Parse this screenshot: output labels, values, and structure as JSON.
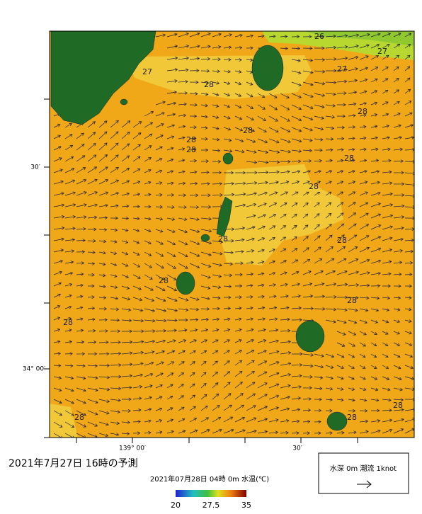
{
  "map": {
    "title": "2021年7月27日  16時の予測",
    "subtitle": "2021年07月28日 04時 0m 水温(℃)",
    "lat_labels": [
      "30′",
      "34° 00′"
    ],
    "lon_labels": [
      "139° 00′",
      "30′"
    ],
    "contour_labels": [
      26,
      27,
      27,
      27,
      28,
      28,
      28,
      28,
      28,
      28,
      28,
      28,
      28,
      28,
      28,
      28,
      28,
      28,
      28
    ],
    "colorbar": {
      "lim": [
        20,
        35
      ],
      "ticks": [
        20,
        27.5,
        35
      ]
    },
    "legend": "水深 0m 潮流 1knot"
  }
}
